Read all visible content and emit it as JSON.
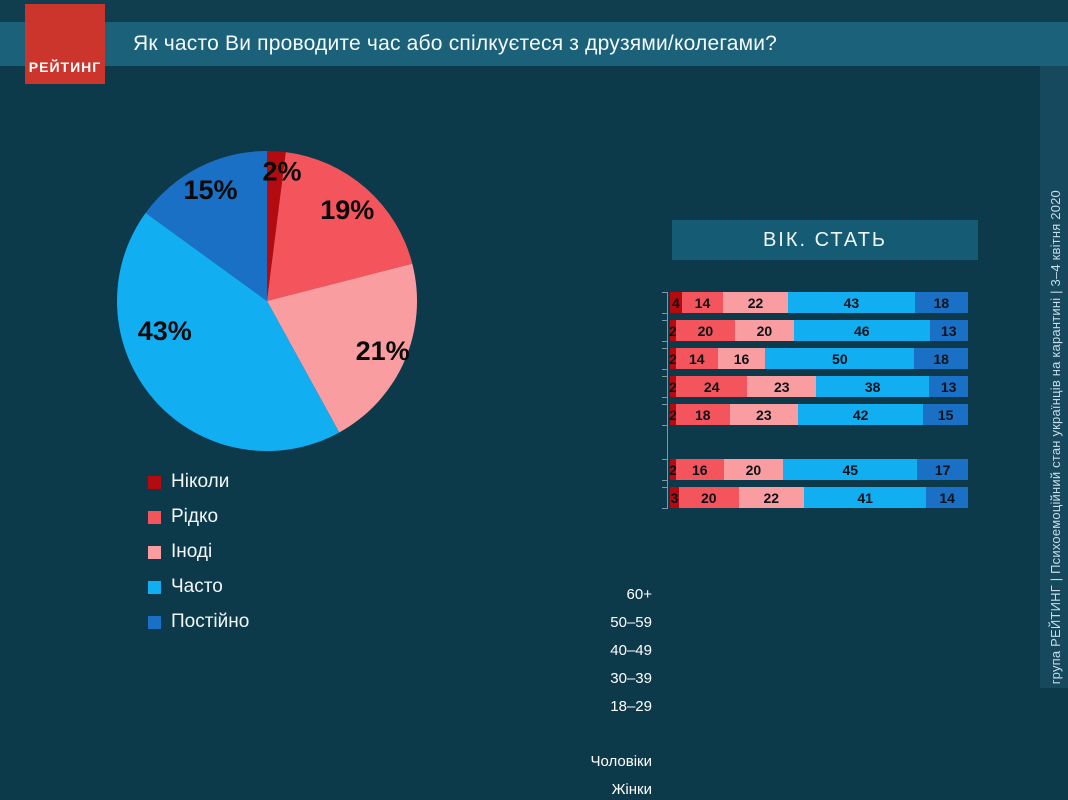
{
  "logo": {
    "text": "РЕЙТИНГ"
  },
  "header": {
    "title": "Як часто Ви проводите час або спілкуєтеся з друзями/колегами?"
  },
  "side_caption": "група РЕЙТИНГ  |  Психоемоційний стан українців на карантині  |  3–4 квітня 2020",
  "colors": {
    "page_bg": "#0d3a4b",
    "top_strip": "#113e4f",
    "title_band": "#1b6179",
    "right_strip": "#16495d",
    "panel": "#155b73",
    "logo_red": "#cb352c",
    "never": "#b30b10",
    "rarely": "#f4555c",
    "sometimes": "#fa9da1",
    "often": "#12aef2",
    "constantly": "#1a70c4"
  },
  "chart_data": [
    {
      "type": "pie",
      "labels": [
        "Ніколи",
        "Рідко",
        "Іноді",
        "Часто",
        "Постійно"
      ],
      "values": [
        2,
        19,
        21,
        43,
        15
      ],
      "value_labels": [
        "2%",
        "19%",
        "21%",
        "43%",
        "15%"
      ],
      "colors": [
        "#b30b10",
        "#f4555c",
        "#fa9da1",
        "#12aef2",
        "#1a70c4"
      ],
      "start_angle_deg": -90,
      "clockwise": true,
      "label_radius_frac": [
        0.87,
        0.81,
        0.84,
        0.71,
        0.83
      ],
      "label_angle_offset_deg": [
        3,
        0,
        0,
        25,
        0
      ],
      "legend_position": "bottom-left"
    },
    {
      "type": "bar",
      "stacked": true,
      "orientation": "horizontal",
      "title": "ВІК. СТАТЬ",
      "categories": [
        "60+",
        "50–59",
        "40–49",
        "30–39",
        "18–29",
        "Чоловіки",
        "Жінки"
      ],
      "gap_after_index": 4,
      "series": [
        {
          "name": "Ніколи",
          "color": "#b30b10",
          "values": [
            4,
            2,
            2,
            2,
            2,
            2,
            3
          ]
        },
        {
          "name": "Рідко",
          "color": "#f4555c",
          "values": [
            14,
            20,
            14,
            24,
            18,
            16,
            20
          ]
        },
        {
          "name": "Іноді",
          "color": "#fa9da1",
          "values": [
            22,
            20,
            16,
            23,
            23,
            20,
            22
          ]
        },
        {
          "name": "Часто",
          "color": "#12aef2",
          "values": [
            43,
            46,
            50,
            38,
            42,
            45,
            41
          ]
        },
        {
          "name": "Постійно",
          "color": "#1a70c4",
          "values": [
            18,
            13,
            18,
            13,
            15,
            17,
            14
          ]
        }
      ],
      "xlim": [
        0,
        100
      ],
      "value_labels_shown": true
    }
  ]
}
